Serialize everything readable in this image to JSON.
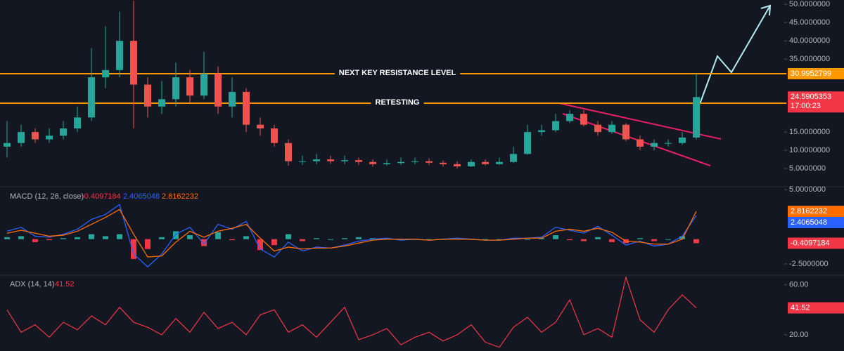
{
  "chart_data": [
    {
      "type": "candlestick",
      "open": [
        11,
        12,
        15,
        13,
        14,
        16,
        19,
        30,
        32,
        40,
        28,
        22,
        24,
        30,
        25,
        31,
        22,
        26,
        17,
        16,
        12,
        7,
        7,
        7.5,
        7,
        7.3,
        6.8,
        6.2,
        6.5,
        6.8,
        7,
        6.6,
        6.2,
        5.6,
        6.8,
        6.2,
        6.8,
        9,
        15,
        15.5,
        18,
        20,
        17,
        15,
        17,
        13,
        11,
        12,
        12,
        13.5
      ],
      "high": [
        18,
        17,
        16,
        16,
        18,
        22,
        38,
        44,
        48,
        51,
        30,
        29,
        34,
        32,
        37,
        33,
        30,
        27,
        19,
        17,
        13,
        8.5,
        9,
        8.5,
        8.5,
        8,
        7.5,
        7.5,
        8,
        8,
        7.8,
        7.2,
        7,
        7.5,
        7.5,
        8,
        11,
        17,
        17,
        20,
        21,
        21,
        18,
        18,
        17.5,
        14,
        13,
        13,
        15,
        31
      ],
      "low": [
        8,
        11,
        12,
        12,
        13,
        15,
        18,
        27,
        30,
        16,
        19,
        20,
        22,
        23,
        24,
        20,
        19,
        15,
        14,
        11,
        5.8,
        6,
        6.2,
        6.3,
        6.2,
        6,
        5.5,
        5.8,
        6,
        6.2,
        6,
        5.6,
        5,
        5.4,
        5.8,
        6,
        6.5,
        8.8,
        14,
        15,
        17.5,
        16.5,
        14,
        14.5,
        12.5,
        10,
        10,
        11,
        11.5,
        13
      ],
      "close": [
        12,
        15,
        13,
        14,
        16,
        19,
        30,
        32,
        40,
        28,
        22,
        24,
        30,
        25,
        31,
        22,
        26,
        17,
        16,
        12,
        7,
        7,
        7.5,
        7,
        7.3,
        6.8,
        6.2,
        6.5,
        6.8,
        7,
        6.6,
        6.2,
        5.6,
        6.8,
        6.2,
        6.8,
        9,
        15,
        15.5,
        18,
        20,
        17,
        15,
        17,
        13,
        11,
        12,
        12,
        13.5,
        24.5905353
      ],
      "up_color": "#26a69a",
      "down_color": "#ef5350",
      "last_color": "#f23645",
      "countdown": "17:00:23",
      "ylim": [
        0.2,
        51.2
      ],
      "yticks": [
        {
          "value": 5,
          "label": "5.0000000"
        },
        {
          "value": 10,
          "label": "10.0000000"
        },
        {
          "value": 15,
          "label": "15.0000000"
        },
        {
          "value": 35,
          "label": "35.0000000"
        },
        {
          "value": 40,
          "label": "40.0000000"
        },
        {
          "value": 45,
          "label": "45.0000000"
        },
        {
          "value": 50,
          "label": "50.0000000"
        }
      ],
      "levels": [
        {
          "name": "NEXT KEY RESISTANCE LEVEL",
          "value": 30.9952799,
          "color": "#ff9800"
        },
        {
          "name": "RETESTING",
          "value": 22.9006704,
          "color": "#ff9800"
        }
      ]
    },
    {
      "type": "macd",
      "title": "MACD (12, 26, close)",
      "histogram": {
        "values": [
          0.2,
          0.3,
          -0.3,
          -0.1,
          0.1,
          0.2,
          0.5,
          0.3,
          0.5,
          -2.0,
          -1.0,
          0.2,
          0.8,
          0.4,
          -0.7,
          0.7,
          -0.1,
          0.3,
          -1.1,
          -0.6,
          0.5,
          -0.2,
          0.1,
          0,
          0.1,
          0.2,
          0.1,
          0.1,
          -0.1,
          0,
          0,
          0,
          0.1,
          0,
          0,
          0,
          0.1,
          0,
          0.1,
          0.4,
          -0.1,
          -0.2,
          0.2,
          -0.3,
          -0.4,
          0.1,
          -0.2,
          0,
          0.3,
          -0.4097184
        ],
        "up_color": "#26a69a",
        "down_color": "#f23645"
      },
      "series": [
        {
          "color": "#2962ff",
          "values": [
            0.8,
            1.2,
            0.3,
            0.2,
            0.5,
            1.0,
            2.0,
            2.5,
            3.5,
            -1.5,
            -2.8,
            -1.5,
            0.5,
            1.2,
            -0.5,
            1.5,
            1.0,
            1.8,
            -1.0,
            -1.8,
            -0.3,
            -1.2,
            -0.8,
            -0.9,
            -0.6,
            -0.2,
            0,
            0.1,
            -0.1,
            0,
            -0.1,
            0,
            0.1,
            0,
            -0.1,
            -0.1,
            0.1,
            0.1,
            0.2,
            1.2,
            0.9,
            0.6,
            1.3,
            0.4,
            -0.6,
            -0.2,
            -0.7,
            -0.5,
            0.3,
            2.4065048
          ]
        },
        {
          "color": "#ff6d00",
          "values": [
            0.6,
            0.9,
            0.6,
            0.3,
            0.4,
            0.8,
            1.5,
            2.2,
            3.0,
            0.5,
            -1.8,
            -1.7,
            -0.3,
            0.8,
            0.2,
            0.8,
            1.1,
            1.5,
            0.1,
            -1.2,
            -0.8,
            -1.0,
            -0.9,
            -0.9,
            -0.7,
            -0.4,
            -0.1,
            0,
            0,
            0,
            -0.1,
            0,
            0,
            0,
            -0.1,
            -0.1,
            0,
            0.1,
            0.1,
            0.8,
            1.0,
            0.8,
            1.1,
            0.7,
            -0.2,
            -0.3,
            -0.5,
            -0.5,
            0,
            2.8162232
          ]
        }
      ],
      "ylim": [
        -3.5,
        5.3
      ],
      "yticks": [
        {
          "value": 5,
          "label": "5.0000000"
        },
        {
          "value": -2.5,
          "label": "-2.5000000"
        }
      ]
    },
    {
      "type": "line",
      "title": "ADX (14, 14)",
      "series": [
        {
          "color": "#f23645",
          "values": [
            40,
            22,
            28,
            18,
            30,
            24,
            35,
            28,
            42,
            30,
            26,
            20,
            33,
            22,
            38,
            25,
            30,
            20,
            36,
            40,
            22,
            28,
            18,
            30,
            42,
            16,
            20,
            25,
            12,
            18,
            22,
            15,
            20,
            28,
            14,
            10,
            26,
            34,
            22,
            30,
            48,
            20,
            25,
            18,
            66,
            32,
            22,
            40,
            52,
            41.52
          ]
        }
      ],
      "ylim": [
        7,
        66
      ],
      "yticks": [
        {
          "value": 60,
          "label": "60.00"
        },
        {
          "value": 20,
          "label": "20.00"
        }
      ]
    }
  ]
}
